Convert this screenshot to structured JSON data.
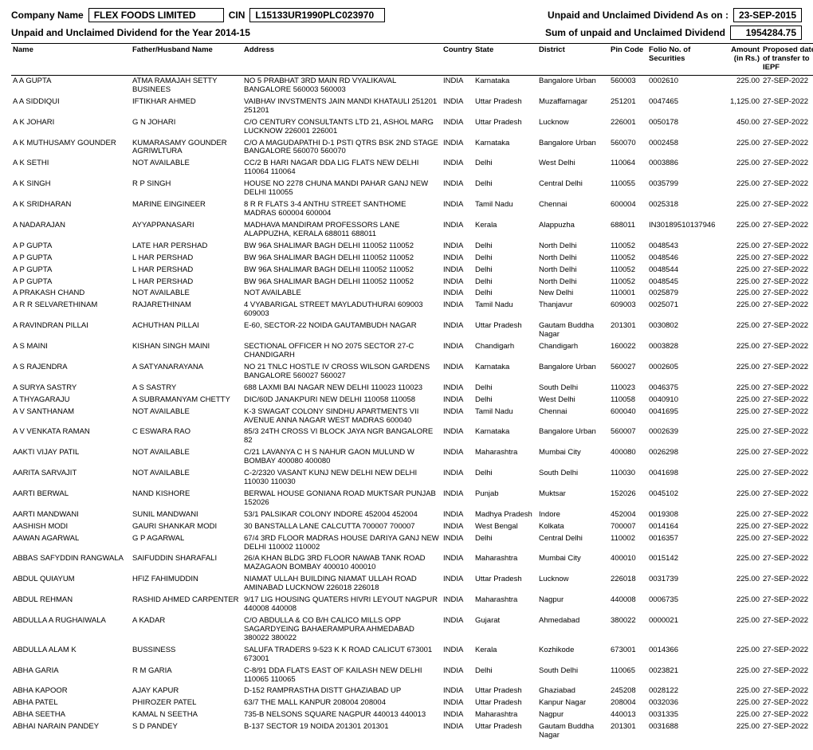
{
  "header": {
    "companyNameLabel": "Company Name",
    "companyName": "FLEX FOODS LIMITED",
    "cinLabel": "CIN",
    "cin": "L15133UR1990PLC023970",
    "asOnLabel": "Unpaid and Unclaimed Dividend As on :",
    "asOnDate": "23-SEP-2015",
    "yearLabel": "Unpaid and Unclaimed Dividend for the Year 2014-15",
    "sumLabel": "Sum of unpaid and Unclaimed Dividend",
    "sumValue": "1954284.75"
  },
  "columns": {
    "name": "Name",
    "father": "Father/Husband Name",
    "address": "Address",
    "country": "Country",
    "state": "State",
    "district": "District",
    "pin": "Pin Code",
    "folio": "Folio No. of Securities",
    "amount": "Amount (in Rs.)",
    "date": "Proposed date of transfer to IEPF"
  },
  "rows": [
    {
      "name": "A A GUPTA",
      "father": "ATMA RAMAJAH SETTY BUSINEES",
      "address": "NO 5 PRABHAT 3RD MAIN RD VYALIKAVAL BANGALORE 560003  560003",
      "country": "INDIA",
      "state": "Karnataka",
      "district": "Bangalore Urban",
      "pin": "560003",
      "folio": "0002610",
      "amount": "225.00",
      "date": "27-SEP-2022"
    },
    {
      "name": "A A SIDDIQUI",
      "father": "IFTIKHAR AHMED",
      "address": "VAIBHAV INVSTMENTS JAIN MANDI KHATAULI 251201  251201",
      "country": "INDIA",
      "state": "Uttar Pradesh",
      "district": "Muzaffarnagar",
      "pin": "251201",
      "folio": "0047465",
      "amount": "1,125.00",
      "date": "27-SEP-2022"
    },
    {
      "name": "A K JOHARI",
      "father": "G N JOHARI",
      "address": "C/O CENTURY CONSULTANTS LTD 21, ASHOL MARG LUCKNOW 226001 226001",
      "country": "INDIA",
      "state": "Uttar Pradesh",
      "district": "Lucknow",
      "pin": "226001",
      "folio": "0050178",
      "amount": "450.00",
      "date": "27-SEP-2022"
    },
    {
      "name": "A K MUTHUSAMY GOUNDER",
      "father": "KUMARASAMY GOUNDER AGRIWLTURA",
      "address": "C/O A MAGUDAPATHI D-1 PSTI QTRS BSK 2ND STAGE BANGALORE 560070  560070",
      "country": "INDIA",
      "state": "Karnataka",
      "district": "Bangalore Urban",
      "pin": "560070",
      "folio": "0002458",
      "amount": "225.00",
      "date": "27-SEP-2022"
    },
    {
      "name": "A K SETHI",
      "father": "NOT AVAILABLE",
      "address": "CC/2 B HARI NAGAR DDA LIG FLATS NEW DELHI 110064  110064",
      "country": "INDIA",
      "state": "Delhi",
      "district": "West Delhi",
      "pin": "110064",
      "folio": "0003886",
      "amount": "225.00",
      "date": "27-SEP-2022"
    },
    {
      "name": "A K SINGH",
      "father": "R P SINGH",
      "address": "HOUSE NO 2278 CHUNA MANDI PAHAR GANJ NEW DELHI 110055",
      "country": "INDIA",
      "state": "Delhi",
      "district": "Central Delhi",
      "pin": "110055",
      "folio": "0035799",
      "amount": "225.00",
      "date": "27-SEP-2022"
    },
    {
      "name": "A K SRIDHARAN",
      "father": "MARINE EINGINEER",
      "address": "8 R R FLATS 3-4 ANTHU STREET SANTHOME MADRAS 600004  600004",
      "country": "INDIA",
      "state": "Tamil Nadu",
      "district": "Chennai",
      "pin": "600004",
      "folio": "0025318",
      "amount": "225.00",
      "date": "27-SEP-2022"
    },
    {
      "name": "A NADARAJAN",
      "father": "AYYAPPANASARI",
      "address": "MADHAVA MANDIRAM PROFESSORS LANE ALAPPUZHA, KERALA 688011 688011",
      "country": "INDIA",
      "state": "Kerala",
      "district": "Alappuzha",
      "pin": "688011",
      "folio": "IN30189510137946",
      "amount": "225.00",
      "date": "27-SEP-2022"
    },
    {
      "name": "A P GUPTA",
      "father": "LATE HAR PERSHAD",
      "address": "BW 96A SHALIMAR BAGH DELHI 110052 110052",
      "country": "INDIA",
      "state": "Delhi",
      "district": "North Delhi",
      "pin": "110052",
      "folio": "0048543",
      "amount": "225.00",
      "date": "27-SEP-2022"
    },
    {
      "name": "A P GUPTA",
      "father": "L HAR PERSHAD",
      "address": "BW 96A SHALIMAR BAGH DELHI 110052 110052",
      "country": "INDIA",
      "state": "Delhi",
      "district": "North Delhi",
      "pin": "110052",
      "folio": "0048546",
      "amount": "225.00",
      "date": "27-SEP-2022"
    },
    {
      "name": "A P GUPTA",
      "father": "L HAR PERSHAD",
      "address": "BW 96A SHALIMAR BAGH DELHI 110052 110052",
      "country": "INDIA",
      "state": "Delhi",
      "district": "North Delhi",
      "pin": "110052",
      "folio": "0048544",
      "amount": "225.00",
      "date": "27-SEP-2022"
    },
    {
      "name": "A P GUPTA",
      "father": "L HAR PERSHAD",
      "address": "BW 96A SHALIMAR BAGH DELHI 110052 110052",
      "country": "INDIA",
      "state": "Delhi",
      "district": "North Delhi",
      "pin": "110052",
      "folio": "0048545",
      "amount": "225.00",
      "date": "27-SEP-2022"
    },
    {
      "name": "A PRAKASH CHAND",
      "father": "NOT AVAILABLE",
      "address": "NOT AVAILABLE",
      "country": "INDIA",
      "state": "Delhi",
      "district": "New Delhi",
      "pin": "110001",
      "folio": "0025879",
      "amount": "225.00",
      "date": "27-SEP-2022"
    },
    {
      "name": "A R R SELVARETHINAM",
      "father": "RAJARETHINAM",
      "address": "4 VYABARIGAL STREET MAYLADUTHURAI 609003  609003",
      "country": "INDIA",
      "state": "Tamil Nadu",
      "district": "Thanjavur",
      "pin": "609003",
      "folio": "0025071",
      "amount": "225.00",
      "date": "27-SEP-2022"
    },
    {
      "name": "A RAVINDRAN PILLAI",
      "father": "ACHUTHAN PILLAI",
      "address": "E-60, SECTOR-22 NOIDA GAUTAMBUDH NAGAR",
      "country": "INDIA",
      "state": "Uttar Pradesh",
      "district": "Gautam Buddha Nagar",
      "pin": "201301",
      "folio": "0030802",
      "amount": "225.00",
      "date": "27-SEP-2022"
    },
    {
      "name": "A S MAINI",
      "father": "KISHAN SINGH MAINI",
      "address": "SECTIONAL OFFICER H NO 2075 SECTOR 27-C CHANDIGARH",
      "country": "INDIA",
      "state": "Chandigarh",
      "district": "Chandigarh",
      "pin": "160022",
      "folio": "0003828",
      "amount": "225.00",
      "date": "27-SEP-2022"
    },
    {
      "name": "A S RAJENDRA",
      "father": "A SATYANARAYANA",
      "address": "NO 21 TNLC HOSTLE IV CROSS WILSON GARDENS BANGALORE 560027  560027",
      "country": "INDIA",
      "state": "Karnataka",
      "district": "Bangalore Urban",
      "pin": "560027",
      "folio": "0002605",
      "amount": "225.00",
      "date": "27-SEP-2022"
    },
    {
      "name": "A SURYA SASTRY",
      "father": "A S SASTRY",
      "address": "688 LAXMI BAI NAGAR NEW DELHI 110023  110023",
      "country": "INDIA",
      "state": "Delhi",
      "district": "South Delhi",
      "pin": "110023",
      "folio": "0046375",
      "amount": "225.00",
      "date": "27-SEP-2022"
    },
    {
      "name": "A THYAGARAJU",
      "father": "A SUBRAMANYAM CHETTY",
      "address": "DIC/60D JANAKPURI NEW DELHI 110058  110058",
      "country": "INDIA",
      "state": "Delhi",
      "district": "West Delhi",
      "pin": "110058",
      "folio": "0040910",
      "amount": "225.00",
      "date": "27-SEP-2022"
    },
    {
      "name": "A V SANTHANAM",
      "father": "NOT AVAILABLE",
      "address": "K-3 SWAGAT COLONY SINDHU APARTMENTS VII AVENUE ANNA NAGAR WEST MADRAS 600040",
      "country": "INDIA",
      "state": "Tamil Nadu",
      "district": "Chennai",
      "pin": "600040",
      "folio": "0041695",
      "amount": "225.00",
      "date": "27-SEP-2022"
    },
    {
      "name": "A V VENKATA RAMAN",
      "father": "C ESWARA RAO",
      "address": "85/3 24TH CROSS VI BLOCK JAYA NGR BANGALORE 82",
      "country": "INDIA",
      "state": "Karnataka",
      "district": "Bangalore Urban",
      "pin": "560007",
      "folio": "0002639",
      "amount": "225.00",
      "date": "27-SEP-2022"
    },
    {
      "name": "AAKTI VIJAY PATIL",
      "father": "NOT AVAILABLE",
      "address": "C/21 LAVANYA C H S NAHUR GAON MULUND W BOMBAY 400080  400080",
      "country": "INDIA",
      "state": "Maharashtra",
      "district": "Mumbai City",
      "pin": "400080",
      "folio": "0026298",
      "amount": "225.00",
      "date": "27-SEP-2022"
    },
    {
      "name": "AARITA SARVAJIT",
      "father": "NOT AVAILABLE",
      "address": "C-2/2320 VASANT KUNJ NEW DELHI NEW DELHI 110030  110030",
      "country": "INDIA",
      "state": "Delhi",
      "district": "South Delhi",
      "pin": "110030",
      "folio": "0041698",
      "amount": "225.00",
      "date": "27-SEP-2022"
    },
    {
      "name": "AARTI BERWAL",
      "father": "NAND KISHORE",
      "address": "BERWAL HOUSE GONIANA ROAD MUKTSAR PUNJAB 152026",
      "country": "INDIA",
      "state": "Punjab",
      "district": "Muktsar",
      "pin": "152026",
      "folio": "0045102",
      "amount": "225.00",
      "date": "27-SEP-2022"
    },
    {
      "name": "AARTI MANDWANI",
      "father": "SUNIL MANDWANI",
      "address": "53/1 PALSIKAR COLONY INDORE 452004  452004",
      "country": "INDIA",
      "state": "Madhya Pradesh",
      "district": "Indore",
      "pin": "452004",
      "folio": "0019308",
      "amount": "225.00",
      "date": "27-SEP-2022"
    },
    {
      "name": "AASHISH MODI",
      "father": "GAURI SHANKAR MODI",
      "address": "30 BANSTALLA LANE CALCUTTA 700007  700007",
      "country": "INDIA",
      "state": "West Bengal",
      "district": "Kolkata",
      "pin": "700007",
      "folio": "0014164",
      "amount": "225.00",
      "date": "27-SEP-2022"
    },
    {
      "name": "AAWAN AGARWAL",
      "father": "G P AGARWAL",
      "address": "67/4 3RD FLOOR MADRAS HOUSE DARIYA GANJ NEW DELHI 110002  110002",
      "country": "INDIA",
      "state": "Delhi",
      "district": "Central Delhi",
      "pin": "110002",
      "folio": "0016357",
      "amount": "225.00",
      "date": "27-SEP-2022"
    },
    {
      "name": "ABBAS SAFYDDIN RANGWALA",
      "father": "SAIFUDDIN SHARAFALI",
      "address": "26/A KHAN BLDG 3RD FLOOR NAWAB TANK ROAD MAZAGAON BOMBAY 400010  400010",
      "country": "INDIA",
      "state": "Maharashtra",
      "district": "Mumbai City",
      "pin": "400010",
      "folio": "0015142",
      "amount": "225.00",
      "date": "27-SEP-2022"
    },
    {
      "name": "ABDUL QUIAYUM",
      "father": "HFIZ FAHIMUDDIN",
      "address": "NIAMAT ULLAH BUILDING NIAMAT ULLAH ROAD AMINABAD LUCKNOW 226018 226018",
      "country": "INDIA",
      "state": "Uttar Pradesh",
      "district": "Lucknow",
      "pin": "226018",
      "folio": "0031739",
      "amount": "225.00",
      "date": "27-SEP-2022"
    },
    {
      "name": "ABDUL REHMAN",
      "father": "RASHID AHMED CARPENTER",
      "address": "9/17 LIG HOUSING QUATERS HIVRI LEYOUT NAGPUR 440008  440008",
      "country": "INDIA",
      "state": "Maharashtra",
      "district": "Nagpur",
      "pin": "440008",
      "folio": "0006735",
      "amount": "225.00",
      "date": "27-SEP-2022"
    },
    {
      "name": "ABDULLA A RUGHAIWALA",
      "father": "A KADAR",
      "address": "C/O ABDULLA & CO B/H CALICO MILLS OPP SAGARDYEING BAHAERAMPURA AHMEDABAD 380022 380022",
      "country": "INDIA",
      "state": "Gujarat",
      "district": "Ahmedabad",
      "pin": "380022",
      "folio": "0000021",
      "amount": "225.00",
      "date": "27-SEP-2022"
    },
    {
      "name": "ABDULLA ALAM K",
      "father": "BUSSINESS",
      "address": "SALUFA TRADERS 9-523 K K ROAD CALICUT 673001 673001",
      "country": "INDIA",
      "state": "Kerala",
      "district": "Kozhikode",
      "pin": "673001",
      "folio": "0014366",
      "amount": "225.00",
      "date": "27-SEP-2022"
    },
    {
      "name": "ABHA GARIA",
      "father": "R M GARIA",
      "address": "C-8/91 DDA FLATS EAST OF KAILASH NEW DELHI 110065  110065",
      "country": "INDIA",
      "state": "Delhi",
      "district": "South Delhi",
      "pin": "110065",
      "folio": "0023821",
      "amount": "225.00",
      "date": "27-SEP-2022"
    },
    {
      "name": "ABHA KAPOOR",
      "father": "AJAY KAPUR",
      "address": "D-152 RAMPRASTHA DISTT GHAZIABAD UP",
      "country": "INDIA",
      "state": "Uttar Pradesh",
      "district": "Ghaziabad",
      "pin": "245208",
      "folio": "0028122",
      "amount": "225.00",
      "date": "27-SEP-2022"
    },
    {
      "name": "ABHA PATEL",
      "father": "PHIROZER PATEL",
      "address": "63/7 THE MALL KANPUR 208004  208004",
      "country": "INDIA",
      "state": "Uttar Pradesh",
      "district": "Kanpur Nagar",
      "pin": "208004",
      "folio": "0032036",
      "amount": "225.00",
      "date": "27-SEP-2022"
    },
    {
      "name": "ABHA SEETHA",
      "father": "KAMAL N SEETHA",
      "address": "735-B NELSONS SQUARE NAGPUR 440013  440013",
      "country": "INDIA",
      "state": "Maharashtra",
      "district": "Nagpur",
      "pin": "440013",
      "folio": "0031335",
      "amount": "225.00",
      "date": "27-SEP-2022"
    },
    {
      "name": "ABHAI NARAIN PANDEY",
      "father": "S D PANDEY",
      "address": "B-137 SECTOR 19 NOIDA 201301  201301",
      "country": "INDIA",
      "state": "Uttar Pradesh",
      "district": "Gautam Buddha Nagar",
      "pin": "201301",
      "folio": "0031688",
      "amount": "225.00",
      "date": "27-SEP-2022"
    }
  ]
}
